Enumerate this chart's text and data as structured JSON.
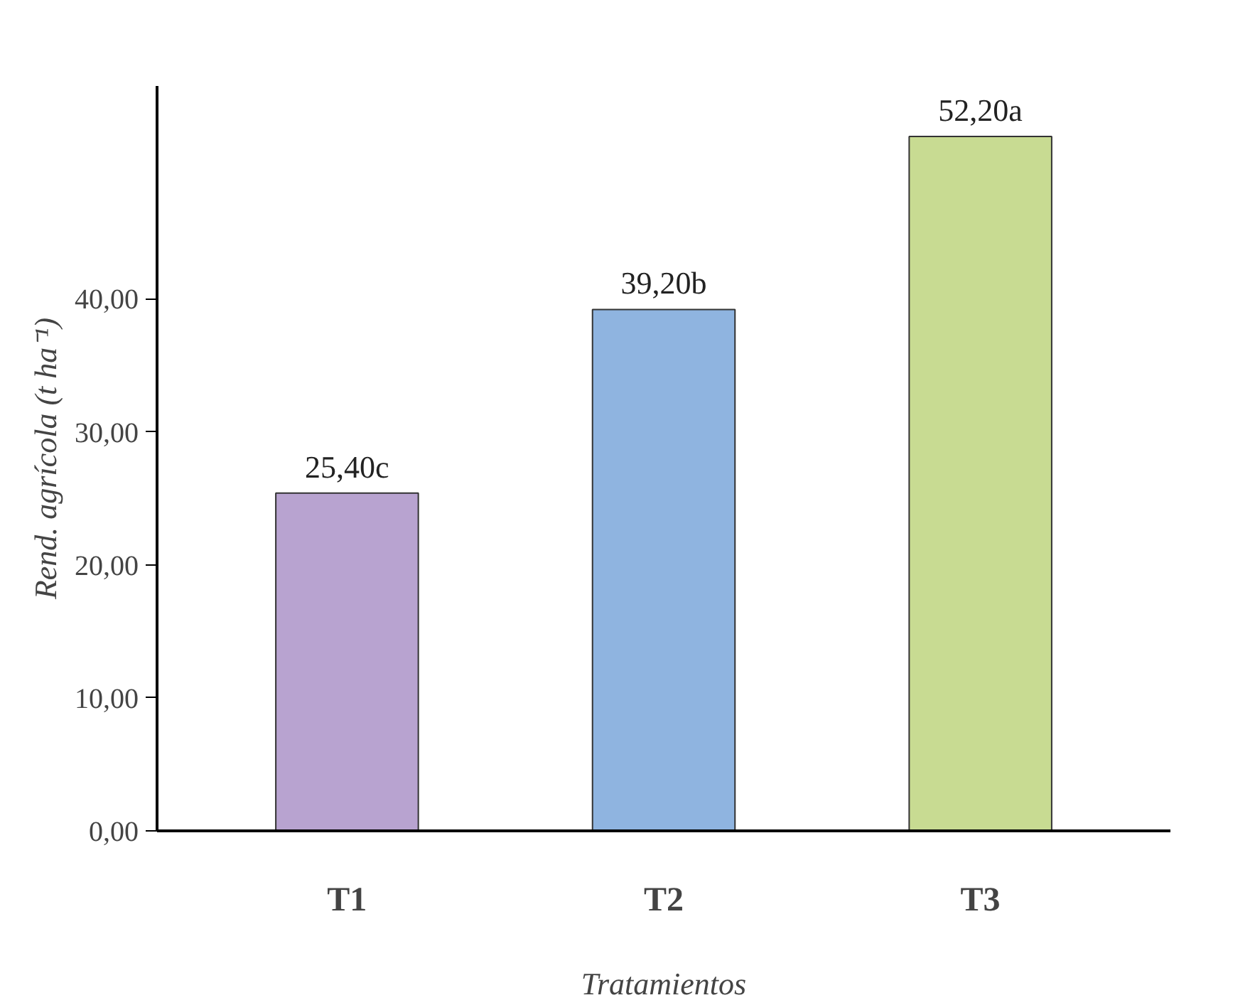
{
  "chart_data": {
    "type": "bar",
    "xlabel": "Tratamientos",
    "ylabel": "Rend. agrícola (t ha⁻¹)",
    "categories": [
      "T1",
      "T2",
      "T3"
    ],
    "values": [
      25.4,
      39.2,
      52.2
    ],
    "colors": [
      "#b8a3d0",
      "#8fb4e0",
      "#c8db92"
    ],
    "value_labels": [
      "25,40c",
      "39,20b",
      "52,20a"
    ],
    "ylim": [
      0,
      56
    ],
    "yticks": [
      {
        "value": 0,
        "label": "0,00"
      },
      {
        "value": 10,
        "label": "10,00"
      },
      {
        "value": 20,
        "label": "20,00"
      },
      {
        "value": 30,
        "label": "30,00"
      },
      {
        "value": 40,
        "label": "40,00"
      }
    ],
    "grid": false
  }
}
